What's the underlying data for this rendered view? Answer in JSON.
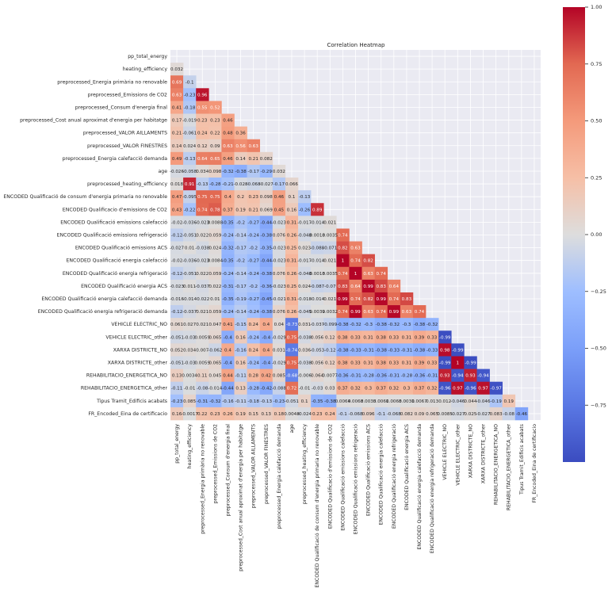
{
  "chart_data": {
    "type": "heatmap",
    "title": "Correlation Heatmap",
    "xlabel": "",
    "ylabel": "",
    "mask": "upper-triangle-including-diagonal",
    "colormap": "coolwarm",
    "vmin": -1,
    "vmax": 1,
    "colorbar": {
      "ticks": [
        1.0,
        0.75,
        0.5,
        0.25,
        0.0,
        -0.25,
        -0.5,
        -0.75
      ],
      "tick_labels": [
        "1.00",
        "0.75",
        "0.50",
        "0.25",
        "0.00",
        "−0.25",
        "−0.50",
        "−0.75"
      ],
      "placement": "right"
    },
    "labels": [
      "pp_total_energy",
      "heating_efficiency",
      "preprocessed_Energia primària no renovable",
      "preprocessed_Emissions de CO2",
      "preprocessed_Consum d'energia final",
      "preprocessed_Cost anual aproximat d'energia per habitatge",
      "preprocessed_VALOR AILLAMENTS",
      "preprocessed_VALOR FINESTRES",
      "preprocessed_Energia calefacció demanda",
      "age",
      "preprocessed_heating_efficiency",
      "ENCODED Qualificació de consum d'energia primaria no renovable",
      "ENCODED Qualificacio d'emissions de CO2",
      "ENCODED Qualificació emissions calefacció",
      "ENCODED Qualificació emissions refrigeració",
      "ENCODED Qualificació emissions ACS",
      "ENCODED Qualificació energia calefacció",
      "ENCODED Qualificació energia refrigeració",
      "ENCODED Qualificació energia ACS",
      "ENCODED Qualificació energia calefacció demanda",
      "ENCODED Qualificació energia refrigeració demanda",
      "VEHICLE ELECTRIC_NO",
      "VEHICLE ELECTRIC_other",
      "XARXA DISTRICTE_NO",
      "XARXA DISTRICTE_other",
      "REHABILITACIO_ENERGETICA_NO",
      "REHABILITACIO_ENERGETICA_other",
      "Tipus Tramit_Edificis acabats",
      "FR_Encoded_Eina de certificacio"
    ],
    "lower_triangle_rows": [
      [],
      [
        "0.032"
      ],
      [
        "0.69",
        "-0.1"
      ],
      [
        "0.63",
        "-0.23",
        "0.96"
      ],
      [
        "0.41",
        "-0.18",
        "0.55",
        "0.52"
      ],
      [
        "0.17",
        "-0.019",
        "0.23",
        "0.23",
        "0.46"
      ],
      [
        "0.21",
        "-0.061",
        "0.24",
        "0.22",
        "0.48",
        "0.36"
      ],
      [
        "0.14",
        "0.024",
        "0.12",
        "0.09",
        "0.63",
        "0.56",
        "0.63"
      ],
      [
        "0.49",
        "-0.13",
        "0.64",
        "0.65",
        "0.46",
        "0.14",
        "0.21",
        "0.082"
      ],
      [
        "-0.026",
        "-0.058",
        "0.034",
        "0.098",
        "-0.32",
        "-0.38",
        "-0.17",
        "-0.29",
        "0.032"
      ],
      [
        "0.018",
        "0.91",
        "-0.13",
        "-0.28",
        "-0.21",
        "-0.028",
        "-0.068",
        "-0.027",
        "-0.17",
        "0.066"
      ],
      [
        "0.47",
        "-0.095",
        "0.75",
        "0.75",
        "0.4",
        "0.2",
        "0.23",
        "0.098",
        "0.46",
        "0.1",
        "-0.13"
      ],
      [
        "0.43",
        "-0.22",
        "0.74",
        "0.78",
        "0.37",
        "0.19",
        "0.21",
        "0.069",
        "0.45",
        "0.16",
        "-0.26",
        "0.89"
      ],
      [
        "-0.02",
        "-0.036",
        "-0.023",
        "0.0088",
        "-0.35",
        "-0.2",
        "-0.27",
        "-0.44",
        "-0.023",
        "0.31",
        "-0.017",
        "-0.014",
        "0.021"
      ],
      [
        "-0.12",
        "-0.051",
        "0.022",
        "0.059",
        "-0.24",
        "-0.14",
        "-0.24",
        "-0.38",
        "0.076",
        "0.26",
        "-0.048",
        "0.0018",
        "0.0035",
        "0.74"
      ],
      [
        "-0.027",
        "0.01",
        "-0.038",
        "0.024",
        "-0.32",
        "-0.17",
        "-0.2",
        "-0.35",
        "-0.023",
        "0.25",
        "0.023",
        "-0.088",
        "-0.071",
        "0.82",
        "0.63"
      ],
      [
        "-0.02",
        "-0.036",
        "-0.023",
        "0.0084",
        "-0.35",
        "-0.2",
        "-0.27",
        "-0.44",
        "-0.023",
        "0.31",
        "-0.017",
        "-0.014",
        "0.021",
        "1",
        "0.74",
        "0.82"
      ],
      [
        "-0.12",
        "-0.051",
        "0.022",
        "0.059",
        "-0.24",
        "-0.14",
        "-0.24",
        "-0.38",
        "0.076",
        "0.26",
        "-0.048",
        "0.0018",
        "0.0035",
        "0.74",
        "1",
        "0.63",
        "0.74"
      ],
      [
        "-0.023",
        "0.011",
        "-0.037",
        "0.022",
        "-0.31",
        "-0.17",
        "-0.2",
        "-0.36",
        "-0.023",
        "0.25",
        "0.024",
        "-0.087",
        "-0.07",
        "0.83",
        "0.64",
        "0.99",
        "0.83",
        "0.64"
      ],
      [
        "-0.016",
        "-0.014",
        "-0.022",
        "0.01",
        "-0.35",
        "-0.19",
        "-0.27",
        "-0.45",
        "-0.021",
        "0.31",
        "-0.018",
        "-0.014",
        "0.021",
        "0.99",
        "0.74",
        "0.82",
        "0.99",
        "0.74",
        "0.83"
      ],
      [
        "-0.12",
        "-0.037",
        "0.021",
        "0.059",
        "-0.24",
        "-0.14",
        "-0.24",
        "-0.38",
        "0.076",
        "0.26",
        "-0.045",
        "0.0039",
        "0.0032",
        "0.74",
        "0.99",
        "0.63",
        "0.74",
        "0.99",
        "0.63",
        "0.74"
      ],
      [
        "0.061",
        "0.027",
        "0.021",
        "0.047",
        "0.41",
        "-0.15",
        "0.24",
        "0.4",
        "0.04",
        "-0.73",
        "0.031",
        "-0.037",
        "-0.099",
        "-0.38",
        "-0.32",
        "-0.3",
        "-0.38",
        "-0.32",
        "-0.3",
        "-0.38",
        "-0.32"
      ],
      [
        "-0.051",
        "-0.03",
        "0.0059",
        "0.065",
        "-0.4",
        "0.16",
        "-0.24",
        "-0.4",
        "-0.029",
        "0.75",
        "-0.038",
        "0.056",
        "0.12",
        "0.38",
        "0.33",
        "0.31",
        "0.38",
        "0.33",
        "0.31",
        "0.39",
        "0.33",
        "-0.99"
      ],
      [
        "0.052",
        "0.034",
        "0.007",
        "-0.062",
        "0.4",
        "-0.16",
        "0.24",
        "0.4",
        "0.031",
        "-0.74",
        "0.036",
        "-0.053",
        "-0.12",
        "-0.38",
        "-0.33",
        "-0.31",
        "-0.38",
        "-0.33",
        "-0.31",
        "-0.38",
        "-0.33",
        "0.98",
        "-0.99"
      ],
      [
        "-0.051",
        "-0.03",
        "0.0059",
        "0.065",
        "-0.4",
        "0.16",
        "-0.24",
        "-0.4",
        "-0.029",
        "0.75",
        "-0.038",
        "0.056",
        "0.12",
        "0.38",
        "0.33",
        "0.31",
        "0.38",
        "0.33",
        "0.31",
        "0.39",
        "0.33",
        "-0.99",
        "1",
        "-0.99"
      ],
      [
        "0.13",
        "0.0034",
        "0.11",
        "0.045",
        "0.44",
        "-0.11",
        "0.28",
        "0.42",
        "0.085",
        "-0.68",
        "-0.006",
        "0.064",
        "0.0077",
        "-0.36",
        "-0.31",
        "-0.28",
        "-0.36",
        "-0.31",
        "-0.28",
        "-0.36",
        "-0.31",
        "0.93",
        "-0.94",
        "0.93",
        "-0.94"
      ],
      [
        "-0.11",
        "-0.01",
        "-0.08",
        "-0.014",
        "-0.44",
        "0.13",
        "-0.28",
        "-0.42",
        "-0.088",
        "0.72",
        "-0.01",
        "-0.03",
        "0.03",
        "0.37",
        "0.32",
        "0.3",
        "0.37",
        "0.32",
        "0.3",
        "0.37",
        "0.32",
        "-0.96",
        "0.97",
        "-0.96",
        "0.97",
        "-0.97"
      ],
      [
        "-0.23",
        "0.085",
        "-0.31",
        "-0.32",
        "-0.16",
        "-0.11",
        "-0.18",
        "-0.13",
        "-0.23",
        "-0.051",
        "0.1",
        "-0.35",
        "-0.38",
        "0.0064",
        "0.0068",
        "0.0035",
        "0.0061",
        "0.0068",
        "0.0031",
        "0.0067",
        "0.013",
        "0.012",
        "-0.046",
        "0.044",
        "-0.046",
        "-0.19",
        "0.19"
      ],
      [
        "0.16",
        "-0.0017",
        "0.22",
        "0.23",
        "0.26",
        "0.19",
        "0.15",
        "0.13",
        "0.18",
        "0.0048",
        "-0.024",
        "0.23",
        "0.24",
        "-0.1",
        "-0.068",
        "0.096",
        "-0.1",
        "-0.068",
        "0.082",
        "0.09",
        "0.065",
        "0.0085",
        "-0.027",
        "0.025",
        "-0.027",
        "0.083",
        "-0.08",
        "-0.46"
      ]
    ]
  }
}
